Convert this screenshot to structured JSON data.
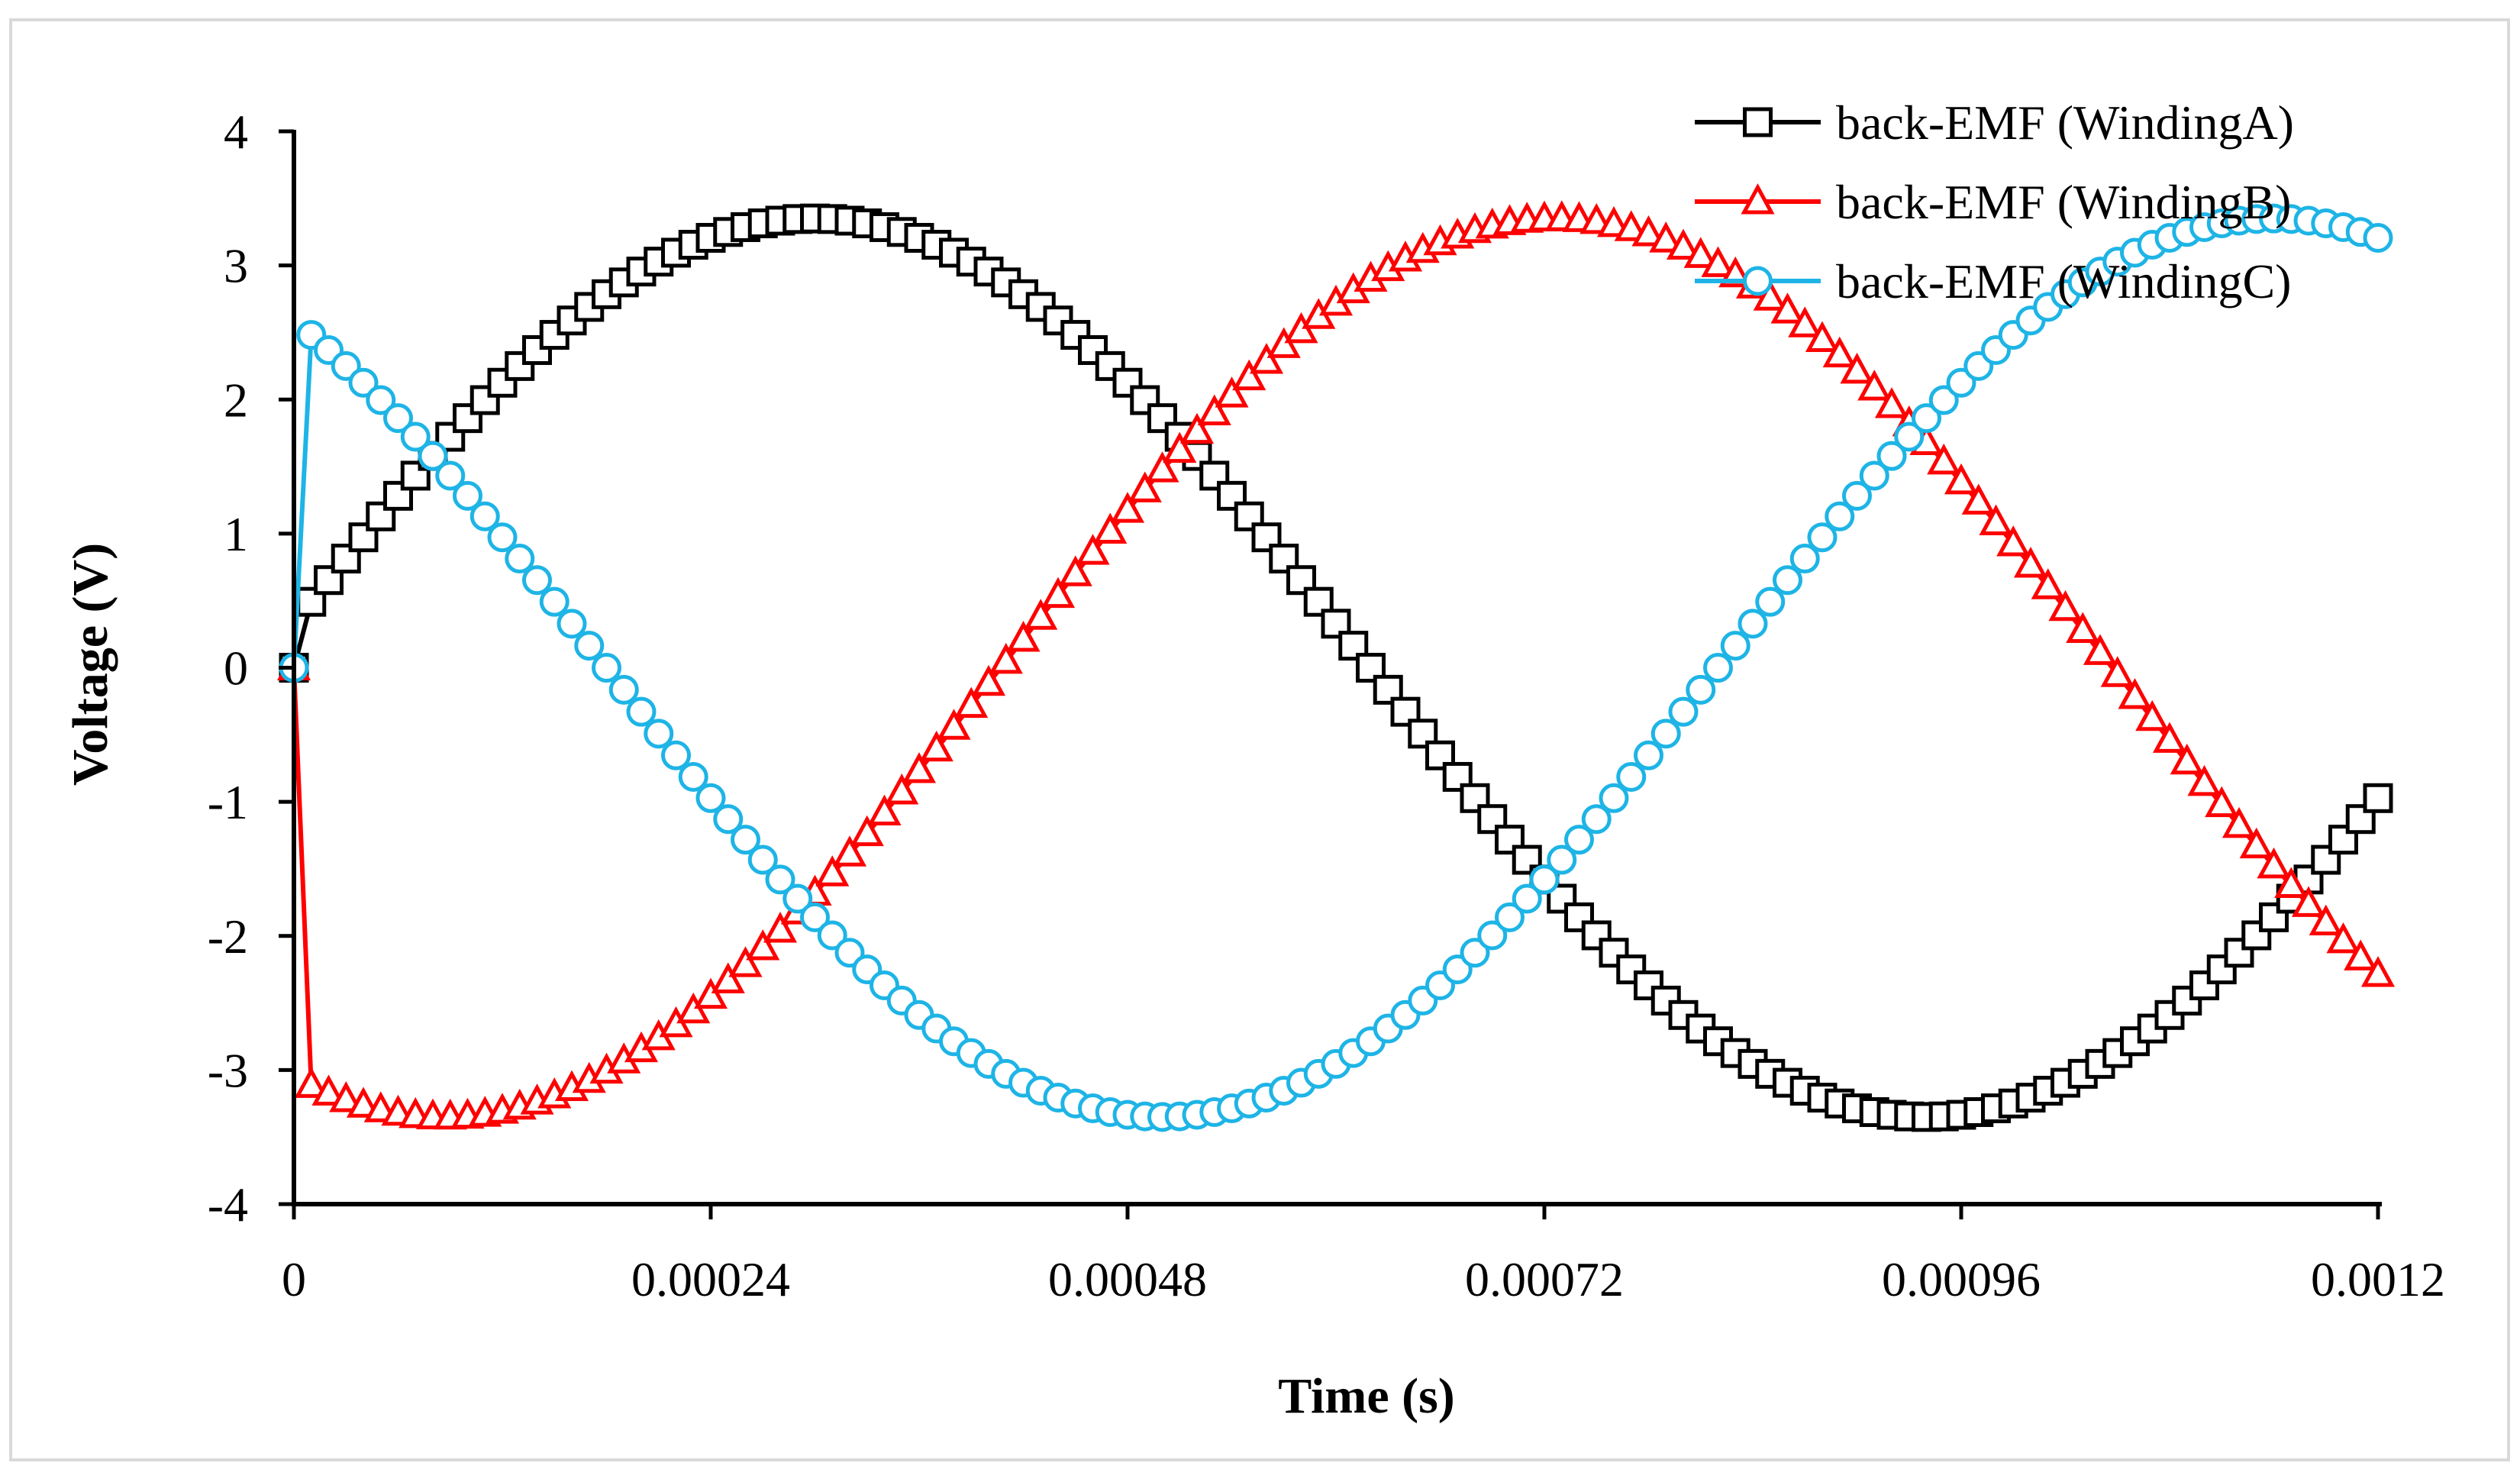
{
  "chart_data": {
    "type": "line",
    "title": "",
    "xlabel": "Time (s)",
    "ylabel": "Voltage (V)",
    "xlim": [
      0,
      0.0012
    ],
    "ylim": [
      -4,
      4
    ],
    "x_ticks": [
      0,
      0.00024,
      0.00048,
      0.00072,
      0.00096,
      0.0012
    ],
    "x_tick_labels": [
      "0",
      "0.00024",
      "0.00048",
      "0.00072",
      "0.00096",
      "0.0012"
    ],
    "y_ticks": [
      4,
      3,
      2,
      1,
      0,
      -1,
      -2,
      -3,
      -4
    ],
    "y_tick_labels": [
      "4",
      "3",
      "2",
      "1",
      "0",
      "-1",
      "-2",
      "-3",
      "-4"
    ],
    "grid": false,
    "legend_position": "top-right",
    "sampling": {
      "x_start": 0,
      "x_step": 1e-05,
      "count": 121,
      "note": "point i is at x = i * 0.00001 s; the first point of every series is at 0 V"
    },
    "series": [
      {
        "name": "back-EMF (WindingA)",
        "color": "#000000",
        "marker": "square",
        "amplitude": 3.35,
        "peak_time": 0.0003,
        "period": 0.00128
      },
      {
        "name": "back-EMF (WindingB)",
        "color": "#ff0000",
        "marker": "triangle",
        "amplitude": 3.35,
        "peak_time": 0.000727,
        "period": 0.00128
      },
      {
        "name": "back-EMF (WindingC)",
        "color": "#1eb4e6",
        "marker": "circle",
        "amplitude": 3.35,
        "peak_time": 0.00114,
        "period": 0.00128
      }
    ]
  }
}
